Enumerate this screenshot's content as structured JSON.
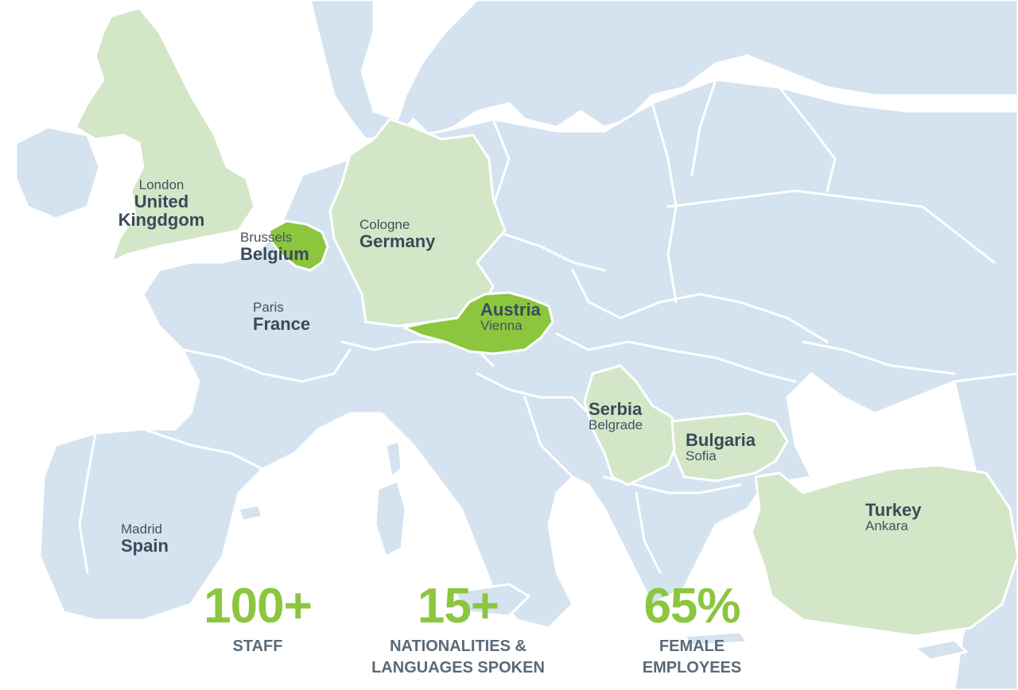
{
  "map": {
    "colors": {
      "land": "#d4e3ef",
      "sea": "#ffffff",
      "border": "#ffffff",
      "highlight_light": "#d3e7c8",
      "highlight_strong": "#8cc63f",
      "label_text": "#3b4a58",
      "stat_number": "#8cc63f",
      "stat_caption": "#5b6a78"
    },
    "locations": [
      {
        "id": "uk",
        "city": "London",
        "country": "United Kingdom",
        "country_lines": [
          "United",
          "Kingdgom"
        ],
        "highlight": "light"
      },
      {
        "id": "belgium",
        "city": "Brussels",
        "country": "Belgium",
        "highlight": "strong"
      },
      {
        "id": "germany",
        "city": "Cologne",
        "country": "Germany",
        "highlight": "light"
      },
      {
        "id": "france",
        "city": "Paris",
        "country": "France",
        "highlight": "none"
      },
      {
        "id": "austria",
        "city": "Vienna",
        "country": "Austria",
        "highlight": "strong"
      },
      {
        "id": "serbia",
        "city": "Belgrade",
        "country": "Serbia",
        "highlight": "light"
      },
      {
        "id": "bulgaria",
        "city": "Sofia",
        "country": "Bulgaria",
        "highlight": "light"
      },
      {
        "id": "turkey",
        "city": "Ankara",
        "country": "Turkey",
        "highlight": "light"
      },
      {
        "id": "spain",
        "city": "Madrid",
        "country": "Spain",
        "highlight": "none"
      }
    ]
  },
  "stats": [
    {
      "value": "100+",
      "caption_lines": [
        "STAFF"
      ]
    },
    {
      "value": "15+",
      "caption_lines": [
        "NATIONALITIES &",
        "LANGUAGES SPOKEN"
      ]
    },
    {
      "value": "65%",
      "caption_lines": [
        "FEMALE",
        "EMPLOYEES"
      ]
    }
  ]
}
